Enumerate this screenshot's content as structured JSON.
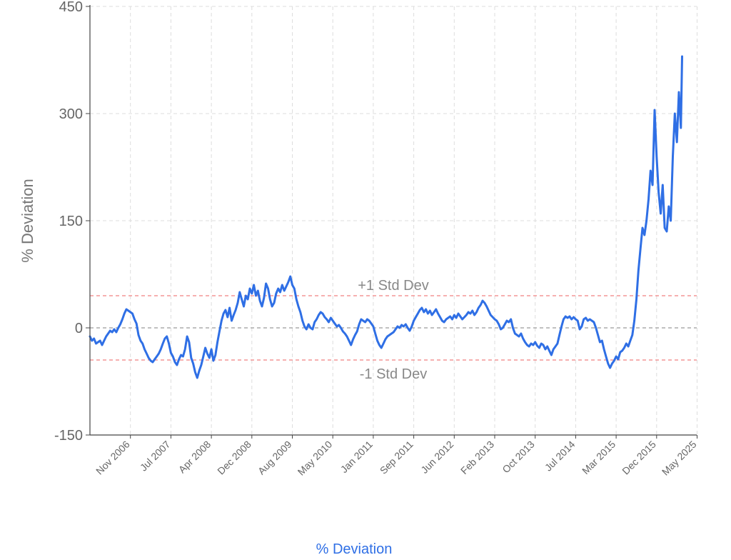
{
  "chart_data": {
    "type": "line",
    "ylabel": "% Deviation",
    "xlabel": "",
    "ylim": [
      -150,
      450
    ],
    "yticks": [
      -150,
      0,
      150,
      300,
      450
    ],
    "categories": [
      "Nov 2006",
      "Jul 2007",
      "Apr 2008",
      "Dec 2008",
      "Aug 2009",
      "May 2010",
      "Jan 2011",
      "Sep 2011",
      "Jun 2012",
      "Feb 2013",
      "Oct 2013",
      "Jul 2014",
      "Mar 2015",
      "Dec 2015",
      "May 2025"
    ],
    "grid": true,
    "legend": "bottom-center",
    "series": [
      {
        "name": "% Deviation",
        "color": "#2f6fe5",
        "points": [
          [
            0,
            -12
          ],
          [
            0.05,
            -18
          ],
          [
            0.1,
            -15
          ],
          [
            0.15,
            -22
          ],
          [
            0.2,
            -20
          ],
          [
            0.25,
            -18
          ],
          [
            0.3,
            -24
          ],
          [
            0.35,
            -18
          ],
          [
            0.4,
            -12
          ],
          [
            0.45,
            -8
          ],
          [
            0.5,
            -4
          ],
          [
            0.55,
            -6
          ],
          [
            0.6,
            -2
          ],
          [
            0.65,
            -6
          ],
          [
            0.7,
            0
          ],
          [
            0.75,
            5
          ],
          [
            0.8,
            12
          ],
          [
            0.85,
            20
          ],
          [
            0.9,
            26
          ],
          [
            0.95,
            24
          ],
          [
            1.0,
            22
          ],
          [
            1.05,
            20
          ],
          [
            1.1,
            12
          ],
          [
            1.15,
            6
          ],
          [
            1.2,
            -10
          ],
          [
            1.25,
            -18
          ],
          [
            1.3,
            -22
          ],
          [
            1.35,
            -30
          ],
          [
            1.4,
            -36
          ],
          [
            1.45,
            -42
          ],
          [
            1.5,
            -46
          ],
          [
            1.55,
            -48
          ],
          [
            1.6,
            -44
          ],
          [
            1.65,
            -40
          ],
          [
            1.7,
            -36
          ],
          [
            1.75,
            -30
          ],
          [
            1.8,
            -22
          ],
          [
            1.85,
            -15
          ],
          [
            1.9,
            -12
          ],
          [
            1.95,
            -22
          ],
          [
            2.0,
            -35
          ],
          [
            2.05,
            -40
          ],
          [
            2.1,
            -48
          ],
          [
            2.15,
            -52
          ],
          [
            2.2,
            -44
          ],
          [
            2.25,
            -38
          ],
          [
            2.3,
            -40
          ],
          [
            2.35,
            -30
          ],
          [
            2.4,
            -12
          ],
          [
            2.45,
            -20
          ],
          [
            2.5,
            -42
          ],
          [
            2.55,
            -50
          ],
          [
            2.6,
            -62
          ],
          [
            2.65,
            -70
          ],
          [
            2.7,
            -60
          ],
          [
            2.75,
            -52
          ],
          [
            2.8,
            -40
          ],
          [
            2.85,
            -28
          ],
          [
            2.9,
            -36
          ],
          [
            2.95,
            -42
          ],
          [
            3.0,
            -30
          ],
          [
            3.05,
            -46
          ],
          [
            3.1,
            -38
          ],
          [
            3.15,
            -20
          ],
          [
            3.2,
            -5
          ],
          [
            3.25,
            10
          ],
          [
            3.3,
            20
          ],
          [
            3.35,
            25
          ],
          [
            3.4,
            15
          ],
          [
            3.45,
            28
          ],
          [
            3.5,
            10
          ],
          [
            3.55,
            18
          ],
          [
            3.6,
            25
          ],
          [
            3.65,
            35
          ],
          [
            3.7,
            50
          ],
          [
            3.75,
            40
          ],
          [
            3.8,
            30
          ],
          [
            3.85,
            45
          ],
          [
            3.9,
            40
          ],
          [
            3.95,
            55
          ],
          [
            4.0,
            48
          ],
          [
            4.05,
            60
          ],
          [
            4.1,
            45
          ],
          [
            4.15,
            52
          ],
          [
            4.2,
            38
          ],
          [
            4.25,
            30
          ],
          [
            4.3,
            42
          ],
          [
            4.35,
            62
          ],
          [
            4.4,
            55
          ],
          [
            4.45,
            40
          ],
          [
            4.5,
            30
          ],
          [
            4.55,
            35
          ],
          [
            4.6,
            48
          ],
          [
            4.65,
            55
          ],
          [
            4.7,
            50
          ],
          [
            4.75,
            60
          ],
          [
            4.8,
            52
          ],
          [
            4.85,
            58
          ],
          [
            4.9,
            64
          ],
          [
            4.95,
            72
          ],
          [
            5.0,
            60
          ],
          [
            5.05,
            55
          ],
          [
            5.1,
            40
          ],
          [
            5.15,
            30
          ],
          [
            5.2,
            22
          ],
          [
            5.25,
            10
          ],
          [
            5.3,
            2
          ],
          [
            5.35,
            -2
          ],
          [
            5.4,
            5
          ],
          [
            5.45,
            0
          ],
          [
            5.5,
            -2
          ],
          [
            5.55,
            8
          ],
          [
            5.6,
            12
          ],
          [
            5.65,
            18
          ],
          [
            5.7,
            22
          ],
          [
            5.75,
            20
          ],
          [
            5.8,
            15
          ],
          [
            5.85,
            12
          ],
          [
            5.9,
            8
          ],
          [
            5.95,
            14
          ],
          [
            6.0,
            10
          ],
          [
            6.05,
            6
          ],
          [
            6.1,
            2
          ],
          [
            6.15,
            4
          ],
          [
            6.2,
            0
          ],
          [
            6.25,
            -5
          ],
          [
            6.3,
            -8
          ],
          [
            6.35,
            -12
          ],
          [
            6.4,
            -18
          ],
          [
            6.45,
            -24
          ],
          [
            6.5,
            -16
          ],
          [
            6.55,
            -10
          ],
          [
            6.6,
            -5
          ],
          [
            6.65,
            5
          ],
          [
            6.7,
            12
          ],
          [
            6.75,
            10
          ],
          [
            6.8,
            8
          ],
          [
            6.85,
            12
          ],
          [
            6.9,
            10
          ],
          [
            6.95,
            6
          ],
          [
            7.0,
            2
          ],
          [
            7.05,
            -8
          ],
          [
            7.1,
            -18
          ],
          [
            7.15,
            -24
          ],
          [
            7.2,
            -28
          ],
          [
            7.25,
            -22
          ],
          [
            7.3,
            -16
          ],
          [
            7.35,
            -12
          ],
          [
            7.4,
            -10
          ],
          [
            7.45,
            -8
          ],
          [
            7.5,
            -6
          ],
          [
            7.55,
            -2
          ],
          [
            7.6,
            2
          ],
          [
            7.65,
            0
          ],
          [
            7.7,
            4
          ],
          [
            7.75,
            2
          ],
          [
            7.8,
            5
          ],
          [
            7.85,
            0
          ],
          [
            7.9,
            -4
          ],
          [
            7.95,
            2
          ],
          [
            8.0,
            10
          ],
          [
            8.05,
            15
          ],
          [
            8.1,
            20
          ],
          [
            8.15,
            25
          ],
          [
            8.2,
            28
          ],
          [
            8.25,
            22
          ],
          [
            8.3,
            26
          ],
          [
            8.35,
            20
          ],
          [
            8.4,
            24
          ],
          [
            8.45,
            18
          ],
          [
            8.5,
            22
          ],
          [
            8.55,
            26
          ],
          [
            8.6,
            20
          ],
          [
            8.65,
            15
          ],
          [
            8.7,
            10
          ],
          [
            8.75,
            8
          ],
          [
            8.8,
            12
          ],
          [
            8.85,
            14
          ],
          [
            8.9,
            16
          ],
          [
            8.95,
            12
          ],
          [
            9.0,
            18
          ],
          [
            9.05,
            14
          ],
          [
            9.1,
            20
          ],
          [
            9.15,
            16
          ],
          [
            9.2,
            12
          ],
          [
            9.25,
            15
          ],
          [
            9.3,
            18
          ],
          [
            9.35,
            22
          ],
          [
            9.4,
            20
          ],
          [
            9.45,
            24
          ],
          [
            9.5,
            18
          ],
          [
            9.55,
            22
          ],
          [
            9.6,
            28
          ],
          [
            9.65,
            32
          ],
          [
            9.7,
            38
          ],
          [
            9.75,
            35
          ],
          [
            9.8,
            30
          ],
          [
            9.85,
            24
          ],
          [
            9.9,
            18
          ],
          [
            9.95,
            15
          ],
          [
            10.0,
            12
          ],
          [
            10.05,
            10
          ],
          [
            10.1,
            5
          ],
          [
            10.15,
            -2
          ],
          [
            10.2,
            0
          ],
          [
            10.25,
            5
          ],
          [
            10.3,
            10
          ],
          [
            10.35,
            8
          ],
          [
            10.4,
            12
          ],
          [
            10.45,
            0
          ],
          [
            10.5,
            -8
          ],
          [
            10.55,
            -10
          ],
          [
            10.6,
            -12
          ],
          [
            10.65,
            -8
          ],
          [
            10.7,
            -15
          ],
          [
            10.75,
            -20
          ],
          [
            10.8,
            -24
          ],
          [
            10.85,
            -26
          ],
          [
            10.9,
            -22
          ],
          [
            10.95,
            -24
          ],
          [
            11.0,
            -20
          ],
          [
            11.05,
            -25
          ],
          [
            11.1,
            -28
          ],
          [
            11.15,
            -22
          ],
          [
            11.2,
            -24
          ],
          [
            11.25,
            -30
          ],
          [
            11.3,
            -26
          ],
          [
            11.35,
            -32
          ],
          [
            11.4,
            -38
          ],
          [
            11.45,
            -30
          ],
          [
            11.5,
            -26
          ],
          [
            11.55,
            -22
          ],
          [
            11.6,
            -10
          ],
          [
            11.65,
            2
          ],
          [
            11.7,
            12
          ],
          [
            11.75,
            16
          ],
          [
            11.8,
            14
          ],
          [
            11.85,
            16
          ],
          [
            11.9,
            12
          ],
          [
            11.95,
            15
          ],
          [
            12.0,
            12
          ],
          [
            12.05,
            10
          ],
          [
            12.1,
            -2
          ],
          [
            12.15,
            2
          ],
          [
            12.2,
            12
          ],
          [
            12.25,
            14
          ],
          [
            12.3,
            10
          ],
          [
            12.35,
            12
          ],
          [
            12.4,
            10
          ],
          [
            12.45,
            8
          ],
          [
            12.5,
            0
          ],
          [
            12.55,
            -10
          ],
          [
            12.6,
            -20
          ],
          [
            12.65,
            -18
          ],
          [
            12.7,
            -30
          ],
          [
            12.75,
            -40
          ],
          [
            12.8,
            -50
          ],
          [
            12.85,
            -56
          ],
          [
            12.9,
            -50
          ],
          [
            12.95,
            -46
          ],
          [
            13.0,
            -40
          ],
          [
            13.05,
            -44
          ],
          [
            13.1,
            -34
          ],
          [
            13.15,
            -32
          ],
          [
            13.2,
            -28
          ],
          [
            13.25,
            -22
          ],
          [
            13.3,
            -26
          ],
          [
            13.35,
            -18
          ],
          [
            13.4,
            -10
          ],
          [
            13.45,
            10
          ],
          [
            13.5,
            40
          ],
          [
            13.55,
            80
          ],
          [
            13.6,
            110
          ],
          [
            13.65,
            140
          ],
          [
            13.7,
            130
          ],
          [
            13.75,
            150
          ],
          [
            13.8,
            180
          ],
          [
            13.85,
            220
          ],
          [
            13.9,
            200
          ],
          [
            13.95,
            305
          ],
          [
            14.0,
            240
          ],
          [
            14.05,
            190
          ],
          [
            14.1,
            160
          ],
          [
            14.15,
            200
          ],
          [
            14.2,
            140
          ],
          [
            14.25,
            135
          ],
          [
            14.3,
            170
          ],
          [
            14.35,
            150
          ],
          [
            14.4,
            240
          ],
          [
            14.45,
            300
          ],
          [
            14.5,
            260
          ],
          [
            14.55,
            330
          ],
          [
            14.6,
            280
          ],
          [
            14.63,
            380
          ]
        ]
      }
    ],
    "reference_lines": [
      {
        "value": 0,
        "style": "dashed",
        "color": "#9a9a9a"
      },
      {
        "value": 45,
        "style": "dashed",
        "color": "#f08080",
        "label": "+1 Std Dev"
      },
      {
        "value": -45,
        "style": "dashed",
        "color": "#f08080",
        "label": "-1 Std Dev"
      }
    ]
  }
}
